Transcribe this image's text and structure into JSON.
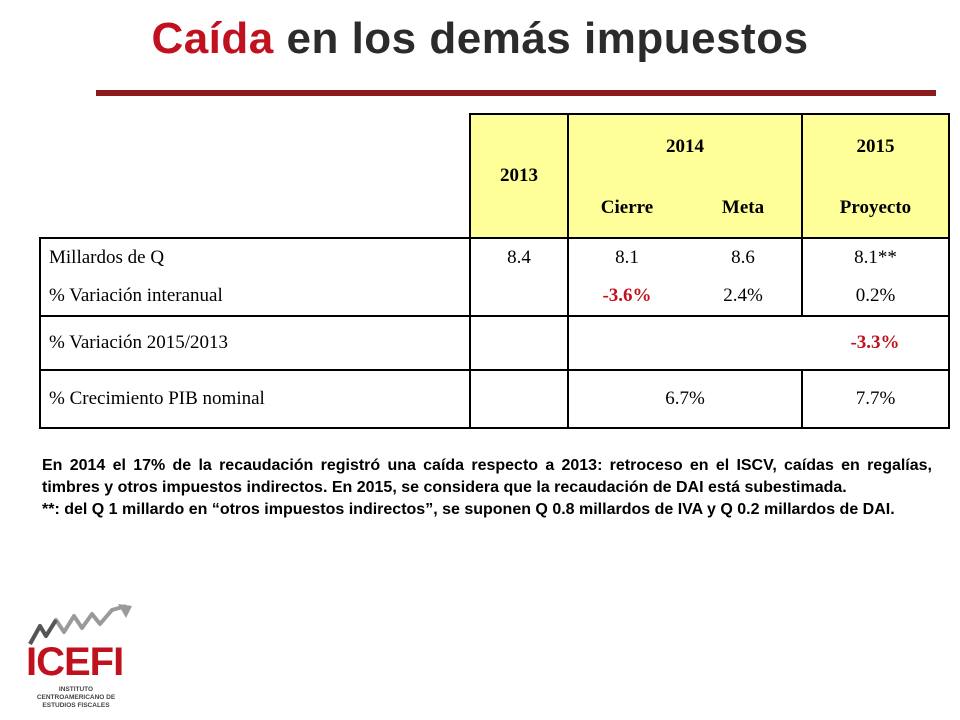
{
  "slide": {
    "title_accent": "Caída",
    "title_rest": " en los demás impuestos"
  },
  "table": {
    "header": {
      "year_2013": "2013",
      "year_2014": "2014",
      "year_2015": "2015",
      "cierre": "Cierre",
      "meta": "Meta",
      "proyecto": "Proyecto"
    },
    "rows": [
      {
        "label": "Millardos de Q",
        "v2013": "8.4",
        "cierre": "8.1",
        "meta": "8.6",
        "proyecto": "8.1**"
      },
      {
        "label": "% Variación interanual",
        "v2013": "",
        "cierre": "-3.6%",
        "meta": "2.4%",
        "proyecto": "0.2%"
      },
      {
        "label": "% Variación 2015/2013",
        "v2013": "",
        "cierre": "",
        "meta": "",
        "proyecto": "-3.3%"
      },
      {
        "label": "% Crecimiento PIB nominal",
        "v2013": "",
        "y2014": "6.7%",
        "proyecto": "7.7%"
      }
    ]
  },
  "notes": {
    "line1": "En 2014 el 17% de la recaudación registró una caída respecto a 2013: retroceso en el ISCV, caídas en regalías, timbres y otros impuestos indirectos. En 2015, se considera que la recaudación de DAI está subestimada.",
    "line2": "**: del Q 1 millardo en “otros impuestos indirectos”, se suponen Q 0.8 millardos de IVA y Q 0.2 millardos de DAI."
  },
  "logo": {
    "word": "ICEFI",
    "subtitle": "INSTITUTO CENTROAMERICANO DE ESTUDIOS FISCALES"
  },
  "colors": {
    "accent_red": "#c0111f",
    "rule": "#8b1a1a",
    "header_fill": "#ffff99"
  }
}
